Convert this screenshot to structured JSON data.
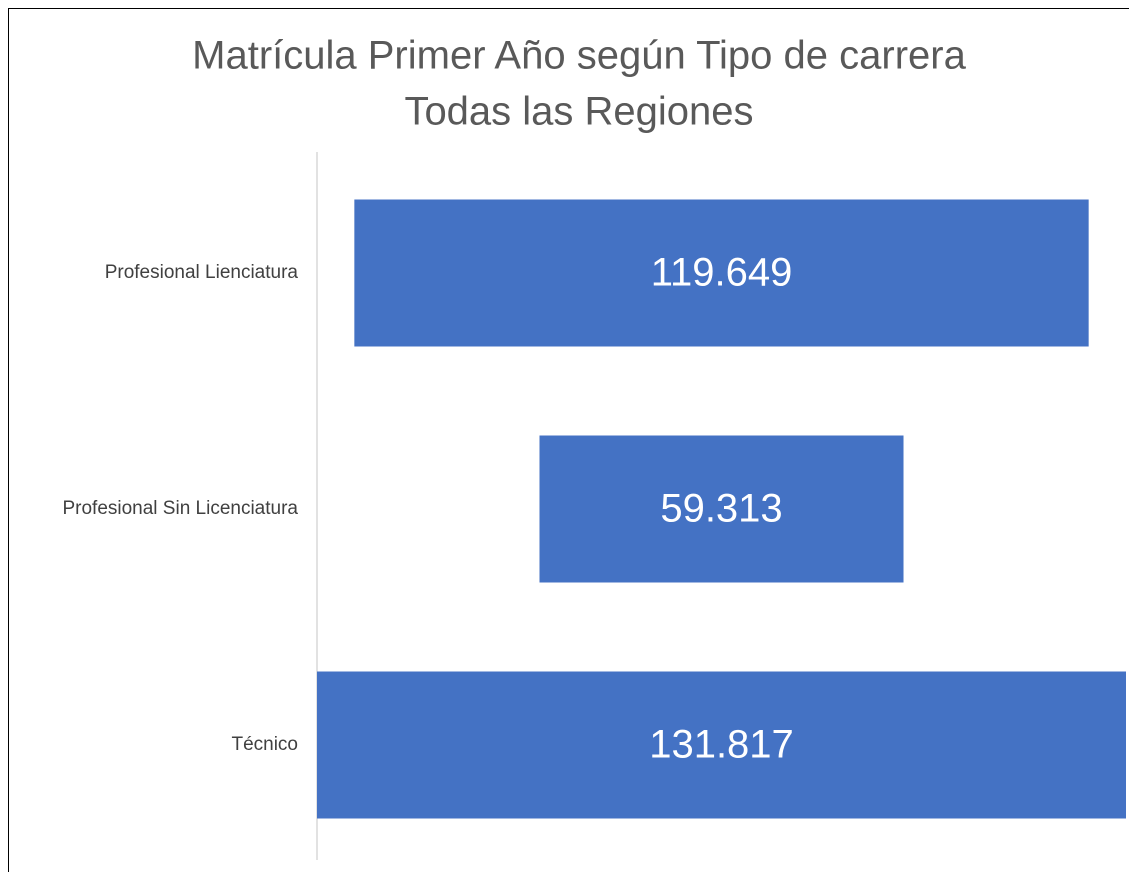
{
  "chart_data": {
    "type": "funnel",
    "title": "Matrícula Primer Año según Tipo de carrera",
    "subtitle": "Todas las Regiones",
    "categories": [
      "Profesional Lienciatura",
      "Profesional Sin Licenciatura",
      "Técnico"
    ],
    "values": [
      119649,
      59313,
      131817
    ],
    "value_labels": [
      "119.649",
      "59.313",
      "131.817"
    ],
    "color": "#4472c4"
  }
}
